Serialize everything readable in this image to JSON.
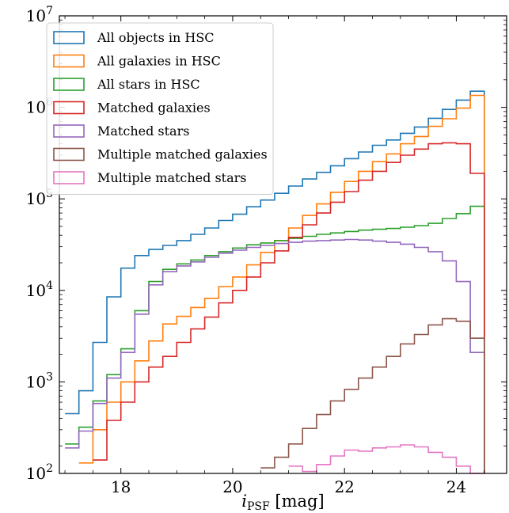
{
  "chart_data": {
    "type": "step-histogram",
    "title": "",
    "xlabel": "i",
    "xlabel_sub": "PSF",
    "xlabel_unit": " [mag]",
    "ylabel": "",
    "yscale": "log",
    "xlim": [
      16.9,
      24.9
    ],
    "ylim": [
      100,
      10000000
    ],
    "grid": false,
    "legend_position": "upper-left",
    "x_ticks": [
      {
        "value": 18,
        "label": "18"
      },
      {
        "value": 20,
        "label": "20"
      },
      {
        "value": 22,
        "label": "22"
      },
      {
        "value": 24,
        "label": "24"
      }
    ],
    "y_ticks": [
      {
        "exp": 2,
        "label": "10",
        "sup": "2"
      },
      {
        "exp": 3,
        "label": "10",
        "sup": "3"
      },
      {
        "exp": 4,
        "label": "10",
        "sup": "4"
      },
      {
        "exp": 5,
        "label": "10",
        "sup": "5"
      },
      {
        "exp": 6,
        "label": "10",
        "sup": "6"
      },
      {
        "exp": 7,
        "label": "10",
        "sup": "7"
      }
    ],
    "bin_edges": [
      17.0,
      17.25,
      17.5,
      17.75,
      18.0,
      18.25,
      18.5,
      18.75,
      19.0,
      19.25,
      19.5,
      19.75,
      20.0,
      20.25,
      20.5,
      20.75,
      21.0,
      21.25,
      21.5,
      21.75,
      22.0,
      22.25,
      22.5,
      22.75,
      23.0,
      23.25,
      23.5,
      23.75,
      24.0,
      24.25,
      24.5
    ],
    "series": [
      {
        "name": "All objects in HSC",
        "color": "#1f77b4",
        "values": [
          450,
          800,
          2700,
          8500,
          17500,
          24000,
          28000,
          31000,
          35000,
          41000,
          48000,
          58000,
          68000,
          82000,
          97000,
          115000,
          138000,
          165000,
          195000,
          230000,
          275000,
          325000,
          385000,
          440000,
          520000,
          610000,
          760000,
          950000,
          1200000,
          1500000
        ]
      },
      {
        "name": "All galaxies in HSC",
        "color": "#ff7f0e",
        "values": [
          null,
          130,
          300,
          600,
          1000,
          1700,
          2800,
          4300,
          5200,
          6500,
          8200,
          11000,
          14000,
          19000,
          26000,
          35000,
          48000,
          66000,
          88000,
          118000,
          155000,
          200000,
          255000,
          310000,
          400000,
          480000,
          620000,
          750000,
          980000,
          1350000
        ]
      },
      {
        "name": "All stars in HSC",
        "color": "#2ca02c",
        "values": [
          210,
          320,
          620,
          1200,
          2300,
          6000,
          12500,
          17000,
          19500,
          21500,
          24000,
          26500,
          29000,
          31500,
          33000,
          35000,
          37000,
          39000,
          41000,
          42500,
          44000,
          45500,
          46500,
          47500,
          49000,
          51000,
          54000,
          61000,
          69000,
          83000
        ]
      },
      {
        "name": "Matched galaxies",
        "color": "#d62728",
        "values": [
          null,
          null,
          140,
          380,
          600,
          1000,
          1450,
          1900,
          2700,
          3800,
          5100,
          7300,
          10000,
          14000,
          20000,
          27000,
          38000,
          52000,
          70000,
          92000,
          120000,
          160000,
          200000,
          250000,
          300000,
          350000,
          400000,
          410000,
          400000,
          190000
        ]
      },
      {
        "name": "Matched stars",
        "color": "#9467bd",
        "values": [
          190,
          290,
          580,
          1100,
          2100,
          5500,
          11500,
          16000,
          18500,
          20500,
          23000,
          25500,
          27500,
          29500,
          31000,
          32500,
          33500,
          34500,
          35000,
          35500,
          36000,
          35500,
          34500,
          33500,
          32000,
          29500,
          26500,
          21000,
          12500,
          2100
        ]
      },
      {
        "name": "Multiple matched galaxies",
        "color": "#8c564b",
        "values": [
          null,
          null,
          null,
          null,
          null,
          null,
          null,
          null,
          null,
          null,
          null,
          null,
          null,
          null,
          115,
          150,
          210,
          310,
          440,
          620,
          830,
          1100,
          1450,
          1900,
          2600,
          3300,
          4200,
          4900,
          4600,
          3000
        ]
      },
      {
        "name": "Multiple matched stars",
        "color": "#e377c2",
        "values": [
          null,
          null,
          null,
          null,
          null,
          null,
          null,
          null,
          null,
          null,
          null,
          null,
          null,
          null,
          null,
          null,
          120,
          105,
          125,
          155,
          180,
          175,
          190,
          195,
          205,
          195,
          170,
          150,
          120,
          100
        ]
      }
    ]
  }
}
